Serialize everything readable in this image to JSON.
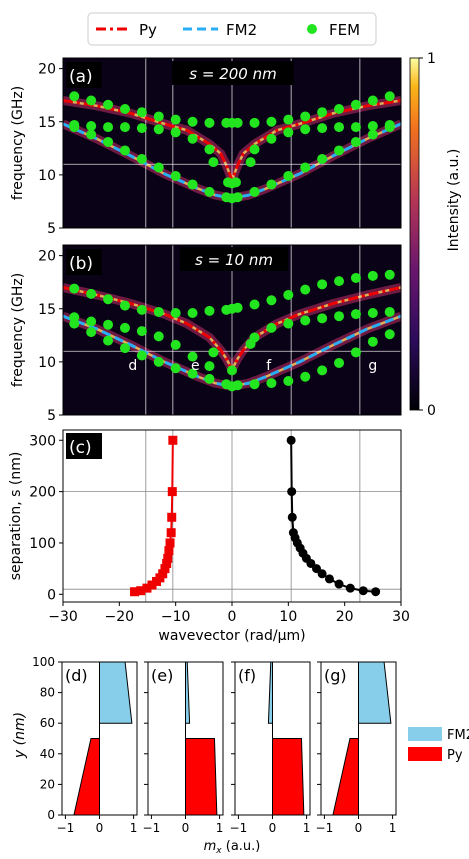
{
  "legend": {
    "py": {
      "label": "Py",
      "color": "#ee0000"
    },
    "fm2": {
      "label": "FM2",
      "color": "#29aef5"
    },
    "fem": {
      "label": "FEM",
      "color": "#22e51f"
    }
  },
  "colorbar": {
    "label": "Intensity (a.u.)",
    "max_label": "1",
    "min_label": "0"
  },
  "chart_data": [
    {
      "type": "heatmap",
      "panel": "(a)",
      "annotation": "s = 200 nm",
      "ylabel": "frequency (GHz)",
      "xlim": [
        -30,
        30
      ],
      "ylim": [
        5,
        21
      ],
      "yticks": [
        "5",
        "10",
        "15",
        "20"
      ],
      "vlines": [
        -15.3,
        -10.5,
        0,
        10.5,
        22.7
      ],
      "hlines": [
        11
      ],
      "series": [
        {
          "name": "Py",
          "style": "dash-dot",
          "color": "#ee0000",
          "x": [
            -30,
            -24,
            -18,
            -12,
            -8,
            -4,
            -2,
            -1,
            0,
            1,
            2,
            4,
            8,
            12,
            18,
            24,
            30
          ],
          "y": [
            17.0,
            16.5,
            15.8,
            14.8,
            14.2,
            12.9,
            12.0,
            10.9,
            9.5,
            10.9,
            12.0,
            12.9,
            14.2,
            14.8,
            15.8,
            16.5,
            17.0
          ]
        },
        {
          "name": "FM2",
          "style": "dashed",
          "color": "#29aef5",
          "x": [
            -30,
            -24,
            -18,
            -12,
            -6,
            -3,
            0,
            3,
            6,
            12,
            18,
            24,
            30
          ],
          "y": [
            14.8,
            13.4,
            11.8,
            10.1,
            8.7,
            8.1,
            7.8,
            8.1,
            8.7,
            10.1,
            11.8,
            13.4,
            14.8
          ]
        },
        {
          "name": "FEM",
          "style": "markers",
          "color": "#22e51f",
          "x": [
            -28,
            -25,
            -22,
            -19,
            -16,
            -13,
            -10,
            -7,
            -4,
            -1,
            0,
            1,
            4,
            7,
            10,
            13,
            16,
            19,
            22,
            25,
            28,
            -28,
            -25,
            -22,
            -19,
            -16,
            -13,
            -10,
            -7,
            -4,
            0,
            4,
            7,
            10,
            13,
            16,
            19,
            22,
            25,
            28,
            -28,
            -25,
            -22,
            -19,
            -16,
            -13,
            -10,
            -7,
            -4,
            -1,
            0,
            1,
            4,
            7,
            10,
            13,
            16,
            19,
            22,
            25,
            28,
            -3.3,
            3.3,
            -0.7,
            0.7
          ],
          "y": [
            17.4,
            17.0,
            16.6,
            16.2,
            15.9,
            15.5,
            15.2,
            15.0,
            14.9,
            14.9,
            14.9,
            14.9,
            14.9,
            15.0,
            15.2,
            15.5,
            15.9,
            16.2,
            16.6,
            17.0,
            17.4,
            14.7,
            14.6,
            14.5,
            14.5,
            14.4,
            14.3,
            14.0,
            13.4,
            12.4,
            9.2,
            12.4,
            13.4,
            14.0,
            14.3,
            14.4,
            14.5,
            14.5,
            14.6,
            14.7,
            14.5,
            13.8,
            13.1,
            12.3,
            11.5,
            10.7,
            9.9,
            9.1,
            8.4,
            7.9,
            7.8,
            7.9,
            8.4,
            9.1,
            9.9,
            10.7,
            11.5,
            12.3,
            13.1,
            13.8,
            14.5,
            11.2,
            11.2,
            9.3,
            9.3
          ]
        }
      ]
    },
    {
      "type": "heatmap",
      "panel": "(b)",
      "annotation": "s = 10 nm",
      "ylabel": "frequency (GHz)",
      "xlim": [
        -30,
        30
      ],
      "ylim": [
        5,
        21
      ],
      "yticks": [
        "5",
        "10",
        "15",
        "20"
      ],
      "vlines": [
        -15.3,
        -10.5,
        0,
        10.5,
        22.7
      ],
      "hlines": [
        11
      ],
      "point_labels": [
        {
          "text": "d",
          "x": -15.3,
          "y": 9.8
        },
        {
          "text": "e",
          "x": -4.2,
          "y": 9.8
        },
        {
          "text": "f",
          "x": 4.2,
          "y": 9.8
        },
        {
          "text": "g",
          "x": 22.7,
          "y": 9.8
        }
      ],
      "series": [
        {
          "name": "Py",
          "style": "dash-dot",
          "color": "#ee0000",
          "x": [
            -30,
            -24,
            -18,
            -12,
            -8,
            -4,
            -2,
            -1,
            0,
            1,
            2,
            4,
            8,
            12,
            18,
            24,
            30
          ],
          "y": [
            17.0,
            16.3,
            15.5,
            14.5,
            13.6,
            12.3,
            11.1,
            10.3,
            9.3,
            10.3,
            11.1,
            12.3,
            13.6,
            14.5,
            15.5,
            16.3,
            17.0
          ]
        },
        {
          "name": "FM2",
          "style": "dashed",
          "color": "#29aef5",
          "x": [
            -30,
            -24,
            -18,
            -12,
            -6,
            -3,
            0,
            3,
            6,
            12,
            18,
            24,
            30
          ],
          "y": [
            14.3,
            13.1,
            11.6,
            10.0,
            8.6,
            8.0,
            7.7,
            8.0,
            8.6,
            10.0,
            11.6,
            13.1,
            14.3
          ]
        },
        {
          "name": "FEM",
          "style": "markers",
          "color": "#22e51f",
          "x": [
            -28,
            -25,
            -22,
            -19,
            -16,
            -13,
            -10,
            -7,
            -4,
            -1,
            0,
            1,
            4,
            7,
            10,
            13,
            16,
            19,
            22,
            25,
            28,
            -28,
            -25,
            -22,
            -19,
            -16,
            -13,
            -10,
            -7,
            -4,
            0,
            4,
            7,
            10,
            13,
            16,
            19,
            22,
            25,
            28,
            -28,
            -25,
            -22,
            -19,
            -16,
            -13,
            -10,
            -7,
            -4,
            -1,
            0,
            1,
            4,
            7,
            10,
            13,
            16,
            19,
            22,
            25,
            28,
            -3.3,
            3.3
          ],
          "y": [
            16.9,
            16.4,
            15.9,
            15.3,
            14.9,
            14.7,
            14.6,
            14.6,
            14.8,
            14.9,
            15.0,
            15.1,
            15.4,
            15.8,
            16.3,
            16.8,
            17.3,
            17.6,
            17.9,
            18.1,
            18.2,
            14.2,
            13.8,
            13.5,
            13.2,
            12.9,
            12.4,
            11.6,
            10.5,
            9.6,
            9.2,
            12.3,
            13.2,
            13.6,
            13.9,
            14.1,
            14.3,
            14.5,
            14.6,
            14.7,
            13.6,
            12.8,
            12.0,
            11.3,
            10.6,
            10.0,
            9.4,
            8.9,
            8.4,
            7.9,
            7.7,
            7.8,
            7.9,
            8.0,
            8.2,
            8.6,
            9.2,
            9.9,
            10.9,
            11.9,
            12.6,
            10.9,
            11.7
          ]
        }
      ]
    },
    {
      "type": "scatter",
      "panel": "(c)",
      "xlabel": "wavevector (rad/µm)",
      "ylabel": "separation, s (nm)",
      "xlim": [
        -30,
        30
      ],
      "ylim": [
        -15,
        320
      ],
      "xticks": [
        "−30",
        "−20",
        "−10",
        "0",
        "10",
        "20",
        "30"
      ],
      "yticks": [
        "0",
        "100",
        "200",
        "300"
      ],
      "vlines": [
        -15.3,
        -10.5,
        0,
        10.5,
        22.7
      ],
      "hlines": [
        10,
        200
      ],
      "series": [
        {
          "name": "",
          "marker": "square",
          "color": "#ee0000",
          "x": [
            -10.5,
            -10.6,
            -10.7,
            -10.8,
            -11.0,
            -11.2,
            -11.4,
            -11.6,
            -11.9,
            -12.3,
            -12.8,
            -13.4,
            -14.2,
            -15.1,
            -16.2,
            -17.3
          ],
          "y": [
            300,
            200,
            150,
            120,
            100,
            85,
            70,
            60,
            50,
            40,
            32,
            25,
            18,
            12,
            7,
            5
          ]
        },
        {
          "name": "",
          "marker": "circle",
          "color": "#000000",
          "x": [
            10.5,
            10.6,
            10.7,
            10.9,
            11.2,
            11.6,
            12.1,
            12.6,
            13.2,
            14.0,
            15.0,
            16.0,
            17.3,
            19.0,
            21.0,
            23.3,
            25.5
          ],
          "y": [
            300,
            200,
            150,
            120,
            110,
            100,
            90,
            80,
            70,
            60,
            50,
            40,
            30,
            20,
            12,
            7,
            5
          ]
        }
      ]
    },
    {
      "type": "area",
      "panels": [
        "(d)",
        "(e)",
        "(f)",
        "(g)"
      ],
      "xlabel": "mx (a.u.)",
      "ylabel": "y (nm)",
      "xlim": [
        -1.1,
        1.1
      ],
      "ylim": [
        0,
        100
      ],
      "xticks": [
        "−1",
        "0",
        "1"
      ],
      "yticks": [
        "0",
        "20",
        "40",
        "60",
        "80",
        "100"
      ],
      "legend": [
        "FM2",
        "Py"
      ],
      "series": [
        {
          "panel": "(d)",
          "fm2": {
            "y": [
              60,
              100
            ],
            "mx": [
              0.95,
              0.75
            ]
          },
          "py": {
            "y": [
              0,
              50
            ],
            "mx": [
              -0.75,
              -0.25
            ]
          }
        },
        {
          "panel": "(e)",
          "fm2": {
            "y": [
              60,
              100
            ],
            "mx": [
              0.12,
              0.05
            ]
          },
          "py": {
            "y": [
              0,
              50
            ],
            "mx": [
              0.92,
              0.85
            ]
          }
        },
        {
          "panel": "(f)",
          "fm2": {
            "y": [
              60,
              100
            ],
            "mx": [
              -0.12,
              -0.05
            ]
          },
          "py": {
            "y": [
              0,
              50
            ],
            "mx": [
              0.92,
              0.85
            ]
          }
        },
        {
          "panel": "(g)",
          "fm2": {
            "y": [
              60,
              100
            ],
            "mx": [
              0.95,
              0.75
            ]
          },
          "py": {
            "y": [
              0,
              50
            ],
            "mx": [
              -0.75,
              -0.25
            ]
          }
        }
      ]
    }
  ]
}
